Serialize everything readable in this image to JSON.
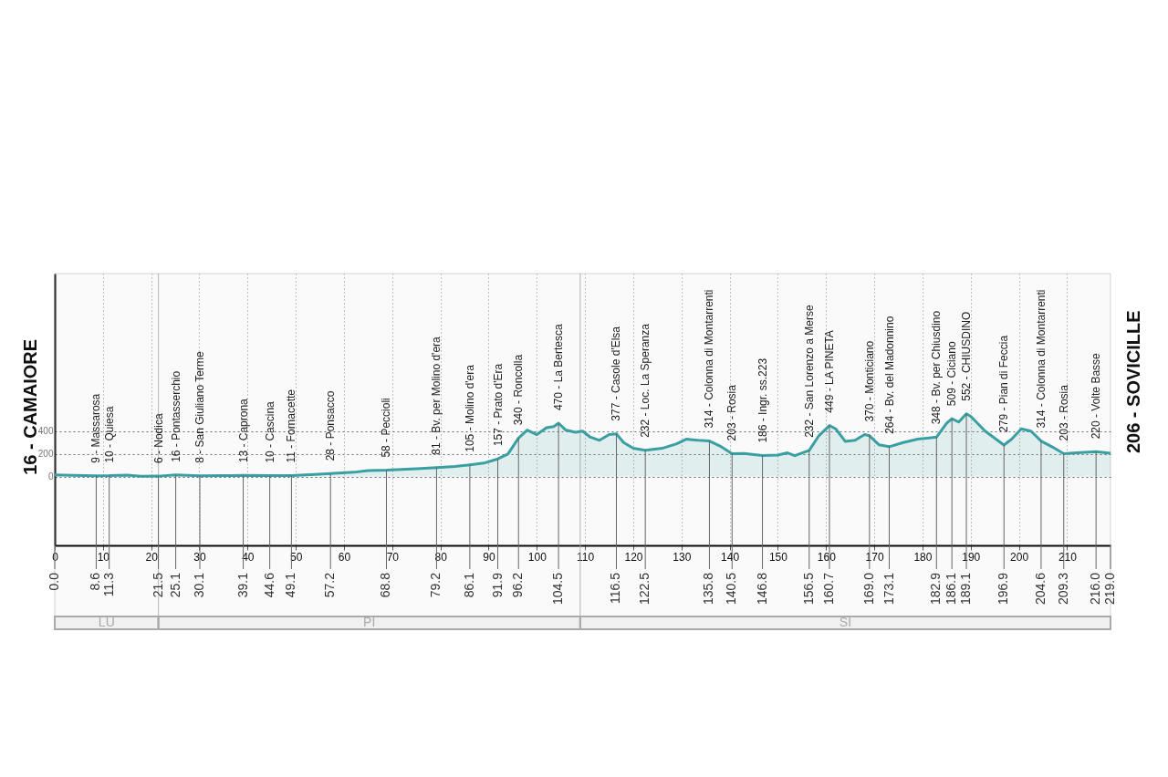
{
  "chart_data": {
    "type": "area",
    "x": [
      0,
      4,
      8.6,
      11.3,
      15,
      18,
      21.5,
      25.1,
      30.1,
      35,
      39.1,
      44.6,
      49.1,
      53,
      57.2,
      62,
      65,
      68.8,
      75,
      79.2,
      83,
      86.1,
      89,
      91.9,
      94,
      96.2,
      98,
      100,
      102,
      103.5,
      104.5,
      106,
      108,
      109.5,
      111,
      113,
      115,
      116.5,
      118,
      120,
      122.5,
      126,
      129,
      131,
      133.5,
      135.8,
      138,
      140.5,
      143,
      146.8,
      150,
      152,
      153.5,
      156.5,
      158.5,
      160.7,
      162,
      164,
      166,
      168,
      169.0,
      171,
      173.1,
      176,
      179,
      182.9,
      185,
      186.1,
      187.5,
      189.1,
      190,
      193,
      196.9,
      198.5,
      200.5,
      202.5,
      204.6,
      207,
      209.3,
      212,
      216,
      219
    ],
    "series": [
      {
        "color": "#3a9fa3",
        "values": [
          16,
          12,
          9,
          10,
          15,
          5,
          6,
          16,
          8,
          10,
          13,
          10,
          11,
          18,
          28,
          40,
          55,
          58,
          70,
          81,
          90,
          105,
          120,
          157,
          200,
          340,
          410,
          370,
          430,
          440,
          470,
          410,
          390,
          400,
          350,
          320,
          370,
          377,
          300,
          250,
          232,
          250,
          290,
          330,
          320,
          314,
          270,
          203,
          205,
          186,
          190,
          210,
          185,
          232,
          360,
          449,
          420,
          310,
          320,
          370,
          360,
          280,
          264,
          300,
          330,
          348,
          470,
          509,
          480,
          552,
          530,
          400,
          279,
          330,
          420,
          400,
          314,
          260,
          203,
          210,
          220,
          206
        ]
      }
    ],
    "xlim": [
      0,
      219
    ],
    "xticks": [
      0,
      10,
      20,
      30,
      40,
      50,
      60,
      70,
      80,
      90,
      100,
      110,
      120,
      130,
      140,
      150,
      160,
      170,
      180,
      190,
      200,
      210
    ],
    "ylim": [
      -600,
      1780
    ],
    "yticks": [
      0,
      200,
      400
    ],
    "grid": true,
    "line_style": "solid",
    "bands": [
      {
        "axis": "x",
        "from": 0,
        "to": 21.5,
        "label": "LU",
        "color": "#aaaaaa"
      },
      {
        "axis": "x",
        "from": 21.5,
        "to": 109,
        "label": "PI",
        "color": "#aaaaaa"
      },
      {
        "axis": "x",
        "from": 109,
        "to": 219,
        "label": "SI",
        "color": "#aaaaaa"
      }
    ],
    "annotations": [
      {
        "text": "16 - CAMAIORE",
        "x": 0,
        "y": 16
      },
      {
        "text": "9 - Massarosa",
        "x": 8.6,
        "y": 9
      },
      {
        "text": "10 - Quiesa",
        "x": 11.3,
        "y": 10
      },
      {
        "text": "6 - Nodica",
        "x": 21.5,
        "y": 6
      },
      {
        "text": "16 - Pontasserchio",
        "x": 25.1,
        "y": 16
      },
      {
        "text": "8 - San Giuliano Terme",
        "x": 30.1,
        "y": 8
      },
      {
        "text": "13 - Caprona",
        "x": 39.1,
        "y": 13
      },
      {
        "text": "10 - Cascina",
        "x": 44.6,
        "y": 10
      },
      {
        "text": "11 - Fornacette",
        "x": 49.1,
        "y": 11
      },
      {
        "text": "28 - Ponsacco",
        "x": 57.2,
        "y": 28
      },
      {
        "text": "58 - Peccioli",
        "x": 68.8,
        "y": 58
      },
      {
        "text": "81 - Bv. per Molino d'era",
        "x": 79.2,
        "y": 81
      },
      {
        "text": "105 - Molino d'era",
        "x": 86.1,
        "y": 105
      },
      {
        "text": "157 - Prato d'Era",
        "x": 91.9,
        "y": 157
      },
      {
        "text": "340 - Roncolla",
        "x": 96.2,
        "y": 340
      },
      {
        "text": "470 - La Bertesca",
        "x": 104.5,
        "y": 470
      },
      {
        "text": "377 - Casole d'Elsa",
        "x": 116.5,
        "y": 377
      },
      {
        "text": "232 - Loc. La Speranza",
        "x": 122.5,
        "y": 232
      },
      {
        "text": "314 - Colonna di Montarrenti",
        "x": 135.8,
        "y": 314
      },
      {
        "text": "203 - Rosia",
        "x": 140.5,
        "y": 203
      },
      {
        "text": "186 - Ingr. ss.223",
        "x": 146.8,
        "y": 186
      },
      {
        "text": "232 - San Lorenzo a Merse",
        "x": 156.5,
        "y": 232
      },
      {
        "text": "449 - LA PINETA",
        "x": 160.7,
        "y": 449
      },
      {
        "text": "370 - Monticiano",
        "x": 169.0,
        "y": 370
      },
      {
        "text": "264 - Bv. del Madonnino",
        "x": 173.1,
        "y": 264
      },
      {
        "text": "348 - Bv. per Chiusdino",
        "x": 182.9,
        "y": 348
      },
      {
        "text": "509 - Ciciano",
        "x": 186.1,
        "y": 509
      },
      {
        "text": "552 - CHIUSDINO",
        "x": 189.1,
        "y": 552
      },
      {
        "text": "279 - Pian di Feccia",
        "x": 196.9,
        "y": 279
      },
      {
        "text": "314 - Colonna di Montarrenti",
        "x": 204.6,
        "y": 314
      },
      {
        "text": "203 - Rosia",
        "x": 209.3,
        "y": 203
      },
      {
        "text": "220 - Volte Basse",
        "x": 216.0,
        "y": 220
      },
      {
        "text": "206 - SOVICILLE",
        "x": 219,
        "y": 206
      },
      {
        "text": "0.0",
        "x": 0
      },
      {
        "text": "8.6",
        "x": 8.6
      },
      {
        "text": "11.3",
        "x": 11.3
      },
      {
        "text": "21.5",
        "x": 21.5
      },
      {
        "text": "25.1",
        "x": 25.1
      },
      {
        "text": "30.1",
        "x": 30.1
      },
      {
        "text": "39.1",
        "x": 39.1
      },
      {
        "text": "44.6",
        "x": 44.6
      },
      {
        "text": "49.1",
        "x": 49.1
      },
      {
        "text": "57.2",
        "x": 57.2
      },
      {
        "text": "68.8",
        "x": 68.8
      },
      {
        "text": "79.2",
        "x": 79.2
      },
      {
        "text": "86.1",
        "x": 86.1
      },
      {
        "text": "91.9",
        "x": 91.9
      },
      {
        "text": "96.2",
        "x": 96.2
      },
      {
        "text": "104.5",
        "x": 104.5
      },
      {
        "text": "116.5",
        "x": 116.5
      },
      {
        "text": "122.5",
        "x": 122.5
      },
      {
        "text": "135.8",
        "x": 135.8
      },
      {
        "text": "140.5",
        "x": 140.5
      },
      {
        "text": "146.8",
        "x": 146.8
      },
      {
        "text": "156.5",
        "x": 156.5
      },
      {
        "text": "160.7",
        "x": 160.7
      },
      {
        "text": "169.0",
        "x": 169.0
      },
      {
        "text": "173.1",
        "x": 173.1
      },
      {
        "text": "182.9",
        "x": 182.9
      },
      {
        "text": "186.1",
        "x": 186.1
      },
      {
        "text": "189.1",
        "x": 189.1
      },
      {
        "text": "196.9",
        "x": 196.9
      },
      {
        "text": "204.6",
        "x": 204.6
      },
      {
        "text": "209.3",
        "x": 209.3
      },
      {
        "text": "216.0",
        "x": 216.0
      },
      {
        "text": "219.0",
        "x": 219.0
      }
    ]
  }
}
